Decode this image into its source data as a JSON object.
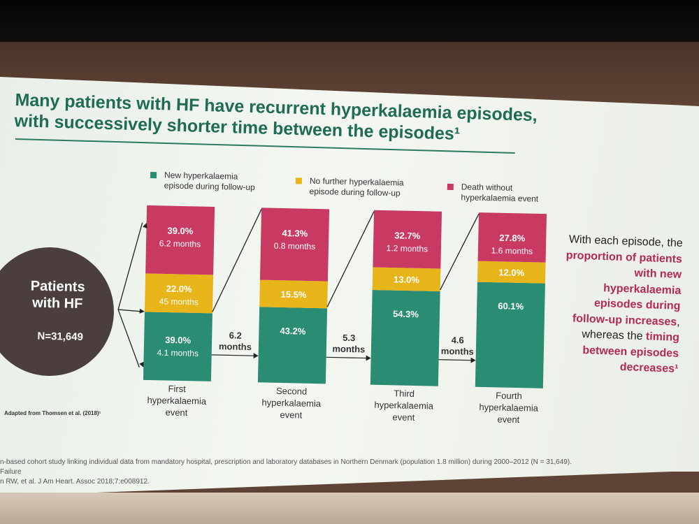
{
  "slide": {
    "title": "Many patients with HF have recurrent hyperkalaemia episodes,\nwith successively shorter time between the episodes¹",
    "source": "Adapted from Thomsen et al. (2018)¹",
    "note_parts": [
      {
        "text": "With each episode, the ",
        "highlight": false
      },
      {
        "text": "proportion of patients with new hyperkalaemia episodes during follow-up increases",
        "highlight": true
      },
      {
        "text": ", whereas the ",
        "highlight": false
      },
      {
        "text": "timing between episodes decreases¹",
        "highlight": true
      }
    ],
    "footnotes": [
      "n-based cohort study linking individual data from mandatory hospital, prescription and laboratory databases in Northern Denmark (population 1.8 million) during 2000–2012 (N = 31,649).",
      "Failure",
      "n RW, et al. J Am Heart. Assoc 2018;7:e008912."
    ],
    "colors": {
      "green": "#2a8c72",
      "yellow": "#e7b51a",
      "pink": "#c93a63",
      "circle": "#4a3f3c",
      "title": "#1f6b55"
    }
  },
  "chart_data": {
    "type": "bar",
    "stacked": true,
    "cohort": {
      "label": "Patients\nwith HF",
      "n": "N=31,649"
    },
    "legend": [
      {
        "key": "new",
        "label": "New hyperkalaemia\nepisode during follow-up",
        "color": "#2a8c72"
      },
      {
        "key": "none",
        "label": "No further hyperkalaemia\nepisode during follow-up",
        "color": "#e7b51a"
      },
      {
        "key": "death",
        "label": "Death without\nhyperkalaemia event",
        "color": "#c93a63"
      }
    ],
    "categories": [
      "First\nhyperkalaemia\nevent",
      "Second\nhyperkalaemia\nevent",
      "Third\nhyperkalaemia\nevent",
      "Fourth\nhyperkalaemia\nevent"
    ],
    "series": [
      {
        "name": "New hyperkalaemia episode during follow-up",
        "values": [
          39.0,
          43.2,
          54.3,
          60.1
        ],
        "labels": [
          "39.0%",
          "43.2%",
          "54.3%",
          "60.1%"
        ],
        "sublabels": [
          "4.1 months",
          "",
          "",
          ""
        ]
      },
      {
        "name": "No further hyperkalaemia episode during follow-up",
        "values": [
          22.0,
          15.5,
          13.0,
          12.0
        ],
        "labels": [
          "22.0%",
          "15.5%",
          "13.0%",
          "12.0%"
        ],
        "sublabels": [
          "45 months",
          "",
          "",
          ""
        ]
      },
      {
        "name": "Death without hyperkalaemia event",
        "values": [
          39.0,
          41.3,
          32.7,
          27.8
        ],
        "labels": [
          "39.0%",
          "41.3%",
          "32.7%",
          "27.8%"
        ],
        "sublabels": [
          "6.2 months",
          "0.8 months",
          "1.2 months",
          "1.6 months"
        ]
      }
    ],
    "intervals": [
      "6.2\nmonths",
      "5.3\nmonths",
      "4.6\nmonths"
    ],
    "ylim": [
      0,
      100
    ]
  }
}
